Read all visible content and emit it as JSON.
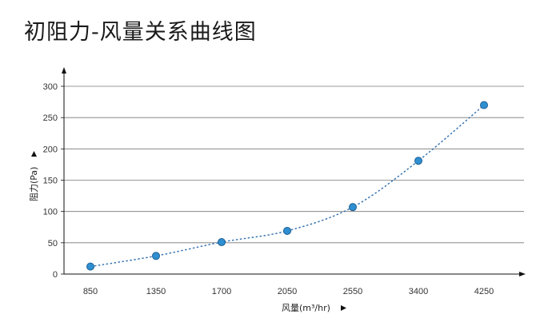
{
  "chart_data": {
    "type": "line",
    "title": "初阻力-风量关系曲线图",
    "xlabel": "风量(m³/hr)",
    "ylabel": "阻力(Pa)",
    "categories": [
      "850",
      "1350",
      "1700",
      "2050",
      "2550",
      "3400",
      "4250"
    ],
    "series": [
      {
        "values": [
          12,
          29,
          51,
          69,
          107,
          181,
          270
        ]
      }
    ],
    "ylim": [
      0,
      300
    ],
    "yticks": [
      "0",
      "50",
      "100",
      "150",
      "200",
      "250",
      "300"
    ],
    "grid": true,
    "colors": {
      "point": "#2f8fd0",
      "point_stroke": "#1d5f93",
      "line": "#2f6fb0",
      "grid": "#777777",
      "axis": "#111111"
    }
  }
}
